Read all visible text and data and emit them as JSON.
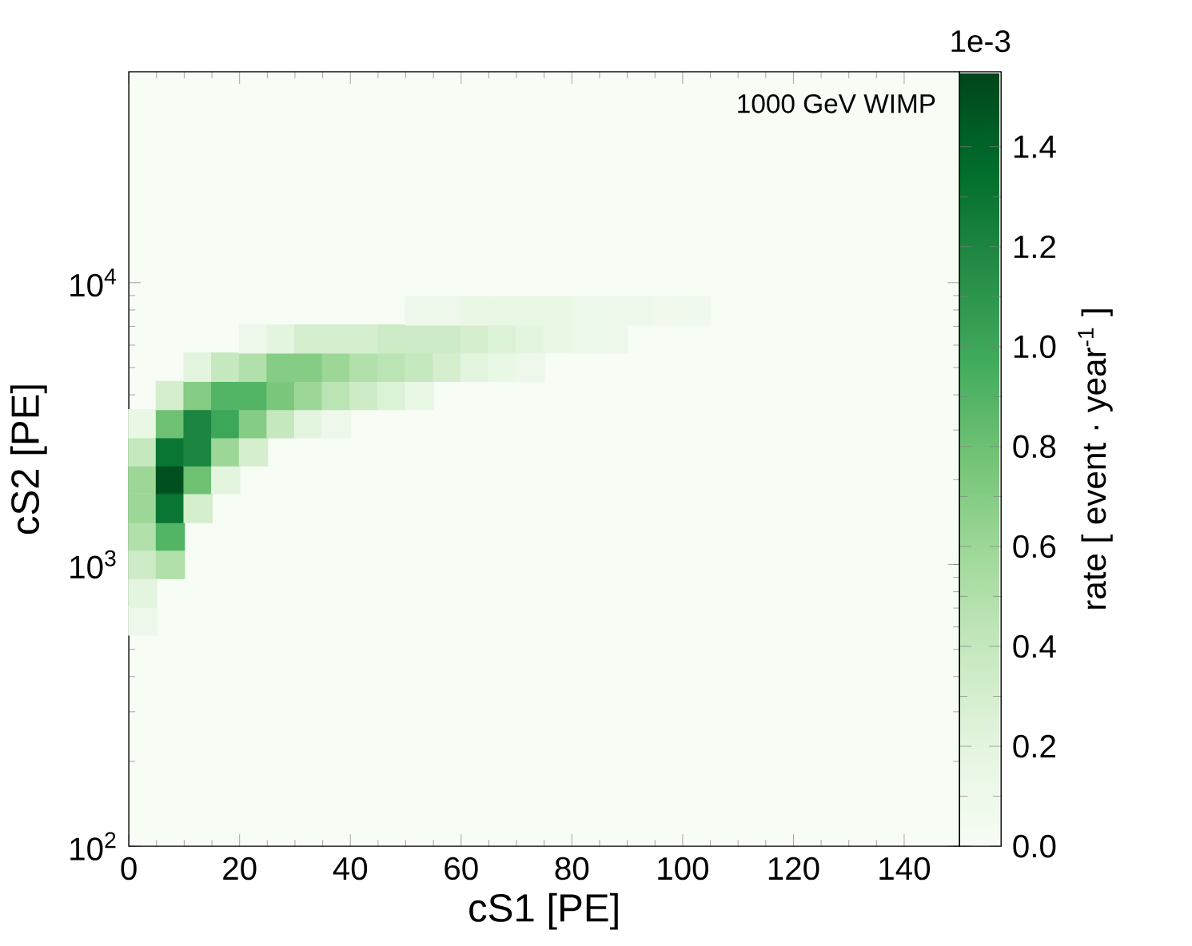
{
  "chart_data": {
    "type": "scatter",
    "xlabel": "cS1 [PE]",
    "ylabel": "cS2 [PE]",
    "clabel": "rate [ event · year$^{-1}$ ]",
    "annotations": [
      "1000 GeV WIMP",
      "1e-3"
    ],
    "log": "y",
    "marker": "square",
    "xlim": [
      0,
      150
    ],
    "xticks": [
      0,
      20,
      40,
      60,
      80,
      100,
      120,
      140
    ],
    "ylim": [
      100,
      56000
    ],
    "yticks": [
      {
        "value": 100,
        "label": "10$^{2}$"
      },
      {
        "value": 1000,
        "label": "10$^{3}$"
      },
      {
        "value": 10000,
        "label": "10$^{4}$"
      }
    ],
    "clim": [
      0,
      1.55
    ],
    "cticks": [
      {
        "value": 0,
        "label": "0.0"
      },
      0.2,
      0.4,
      0.6,
      0.8,
      {
        "value": 1.0,
        "label": "1.0"
      },
      1.2,
      1.4
    ],
    "x": [
      2.5,
      2.5,
      2.5,
      2.5,
      2.5,
      2.5,
      2.5,
      2.5,
      7.5,
      7.5,
      7.5,
      7.5,
      7.5,
      7.5,
      7.5,
      12.5,
      12.5,
      12.5,
      12.5,
      12.5,
      12.5,
      17.5,
      17.5,
      17.5,
      17.5,
      17.5,
      22.5,
      22.5,
      22.5,
      22.5,
      22.5,
      27.5,
      27.5,
      27.5,
      27.5,
      32.5,
      32.5,
      32.5,
      32.5,
      37.5,
      37.5,
      37.5,
      37.5,
      42.5,
      42.5,
      42.5,
      47.5,
      47.5,
      47.5,
      52.5,
      52.5,
      52.5,
      52.5,
      57.5,
      57.5,
      57.5,
      62.5,
      62.5,
      62.5,
      67.5,
      67.5,
      67.5,
      72.5,
      72.5,
      72.5,
      77.5,
      77.5,
      82.5,
      82.5,
      87.5,
      87.5,
      92.5,
      97.5,
      102.5
    ],
    "values": [
      630,
      790,
      1000,
      1260,
      1580,
      2000,
      2510,
      3160,
      1000,
      1260,
      1580,
      2000,
      2510,
      3160,
      3980,
      1580,
      2000,
      2510,
      3160,
      3980,
      5010,
      2000,
      2510,
      3160,
      3980,
      5010,
      2510,
      3160,
      3980,
      5010,
      6310,
      3160,
      3980,
      5010,
      6310,
      3160,
      3980,
      5010,
      6310,
      3160,
      3980,
      5010,
      6310,
      3980,
      5010,
      6310,
      3980,
      5010,
      6310,
      3980,
      5010,
      6310,
      7940,
      5010,
      6310,
      7940,
      5010,
      6310,
      7940,
      5010,
      6310,
      7940,
      5010,
      6310,
      7940,
      6310,
      7940,
      6310,
      7940,
      6310,
      7940,
      7940,
      7940,
      7940
    ],
    "cvalues": [
      0.1,
      0.2,
      0.35,
      0.5,
      0.6,
      0.6,
      0.4,
      0.15,
      0.5,
      0.9,
      1.3,
      1.5,
      1.3,
      0.8,
      0.3,
      0.3,
      0.8,
      1.2,
      1.2,
      0.7,
      0.2,
      0.2,
      0.6,
      1.0,
      0.9,
      0.4,
      0.3,
      0.7,
      0.9,
      0.5,
      0.1,
      0.4,
      0.75,
      0.7,
      0.2,
      0.2,
      0.6,
      0.7,
      0.3,
      0.1,
      0.45,
      0.6,
      0.3,
      0.35,
      0.5,
      0.3,
      0.25,
      0.45,
      0.35,
      0.15,
      0.4,
      0.35,
      0.1,
      0.3,
      0.35,
      0.1,
      0.2,
      0.3,
      0.15,
      0.15,
      0.25,
      0.15,
      0.1,
      0.2,
      0.15,
      0.15,
      0.15,
      0.12,
      0.12,
      0.1,
      0.1,
      0.1,
      0.08,
      0.07
    ]
  }
}
